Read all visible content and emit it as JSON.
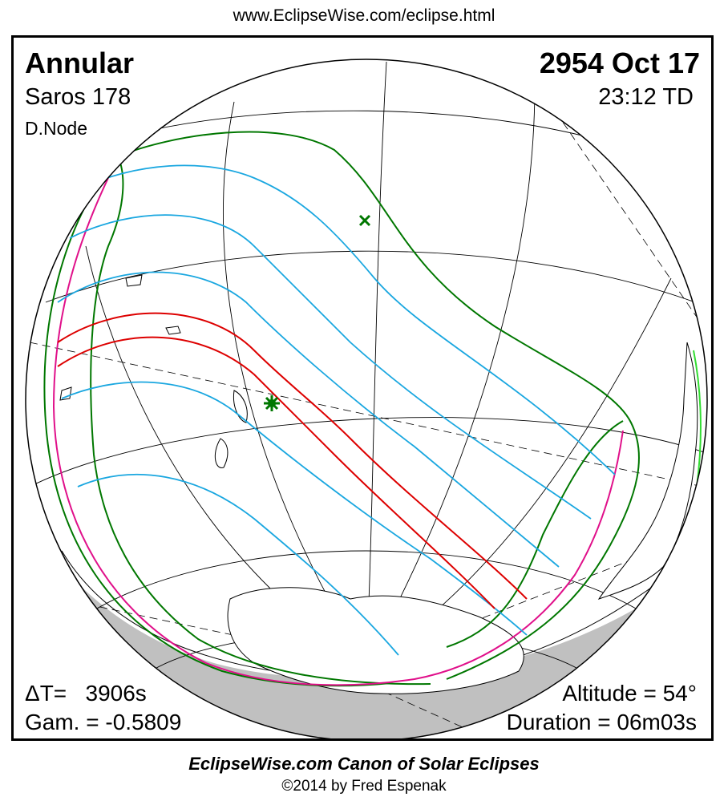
{
  "header": {
    "url": "www.EclipseWise.com/eclipse.html"
  },
  "eclipse": {
    "type": "Annular",
    "date": "2954 Oct 17",
    "saros": "Saros 178",
    "time": "23:12 TD",
    "node": "D.Node",
    "delta_t": "ΔT=   3906s",
    "gamma": "Gam. = -0.5809",
    "altitude": "Altitude = 54°",
    "duration": "Duration = 06m03s"
  },
  "footer": {
    "canon": "EclipseWise.com Canon of Solar Eclipses",
    "copyright": "©2014 by Fred Espenak"
  },
  "map": {
    "colors": {
      "central_path": "#dd0000",
      "partial_magnitude": "#1aa7e0",
      "penumbral_limits": "#007700",
      "rise_set": "#e0108a",
      "night": "#c0c0c0",
      "greatest_eclipse_marker": "#007700"
    },
    "markers": [
      "greatest-eclipse-star",
      "greatest-duration-cross"
    ]
  }
}
